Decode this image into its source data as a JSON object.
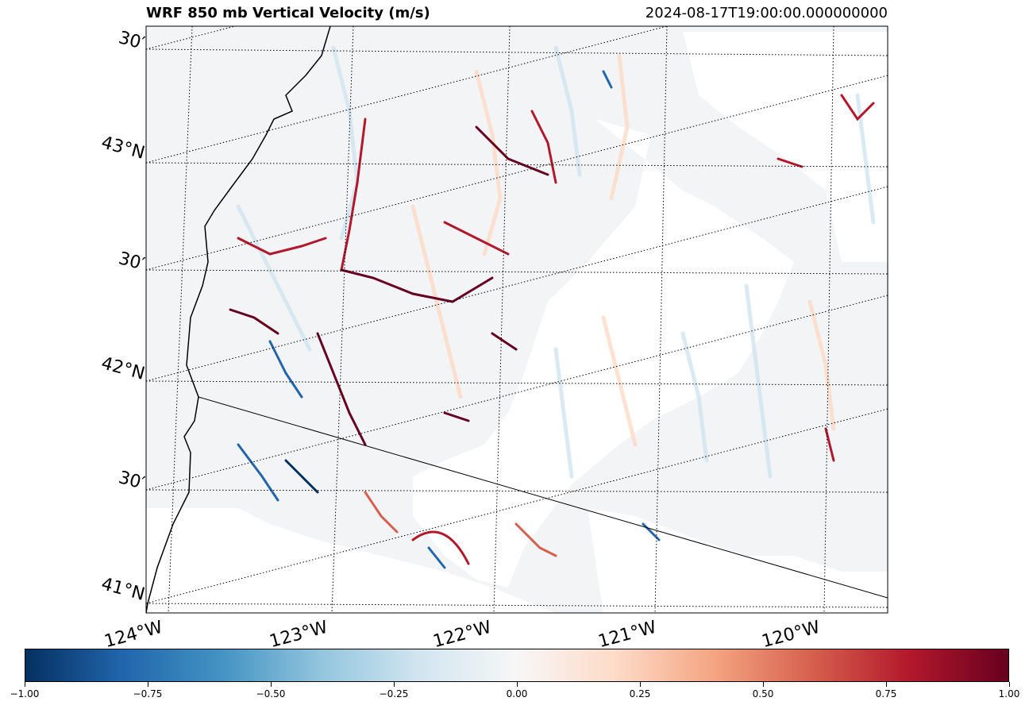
{
  "header": {
    "title": "WRF 850 mb Vertical Velocity (m/s)",
    "timestamp": "2024-08-17T19:00:00.000000000"
  },
  "map": {
    "variable": "850 mb vertical velocity",
    "units": "m/s",
    "lat_labels": [
      "30′",
      "43°N",
      "30′",
      "42°N",
      "30′",
      "41°N"
    ],
    "lon_labels": [
      "124°W",
      "123°W",
      "122°W",
      "121°W",
      "120°W"
    ],
    "gridline_style": "dotted",
    "land_color": "#ffffff",
    "coastline_color": "#000000"
  },
  "colorbar": {
    "colormap": "RdBu_r",
    "vmin": -1.0,
    "vmax": 1.0,
    "colors": [
      "#053061",
      "#2166ac",
      "#4393c3",
      "#92c5de",
      "#d1e5f0",
      "#f7f7f7",
      "#fddbc7",
      "#f4a582",
      "#d6604d",
      "#b2182b",
      "#67001f"
    ],
    "tick_labels": [
      "−1.00",
      "−0.75",
      "−0.50",
      "−0.25",
      "0.00",
      "0.25",
      "0.50",
      "0.75",
      "1.00"
    ]
  }
}
